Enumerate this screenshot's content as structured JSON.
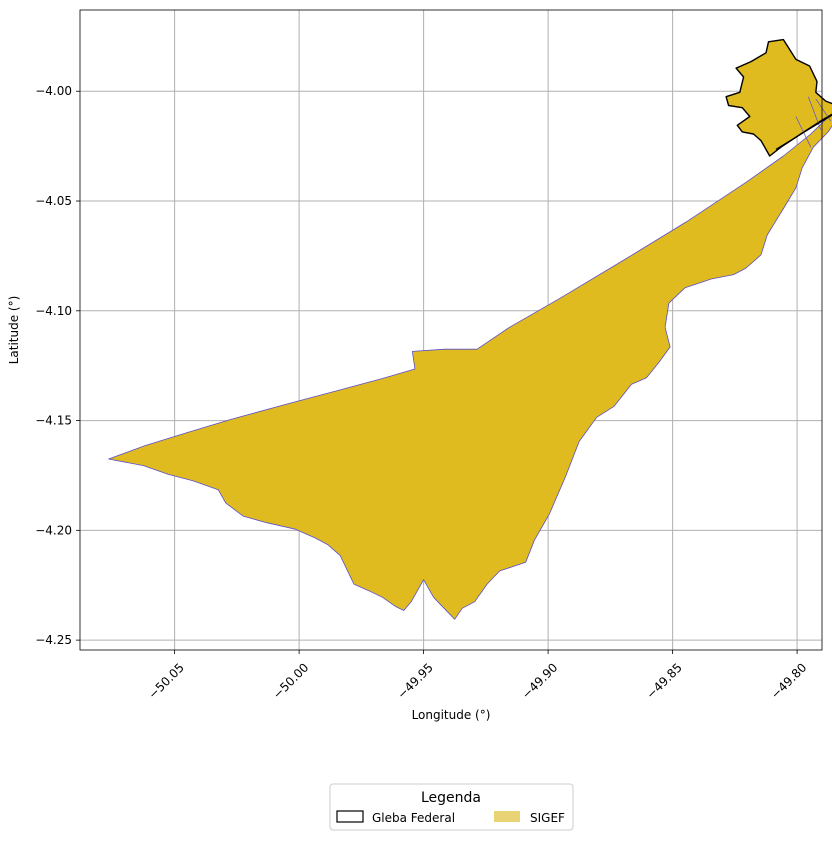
{
  "chart_data": {
    "type": "map",
    "xlabel": "Longitude (°)",
    "ylabel": "Latitude (°)",
    "xlim": [
      -50.088,
      -49.79
    ],
    "ylim": [
      -4.2545,
      -3.963
    ],
    "grid": true,
    "x_ticks": [
      {
        "value": -50.05,
        "label": "−50.05"
      },
      {
        "value": -50.0,
        "label": "−50.00"
      },
      {
        "value": -49.95,
        "label": "−49.95"
      },
      {
        "value": -49.9,
        "label": "−49.90"
      },
      {
        "value": -49.85,
        "label": "−49.85"
      },
      {
        "value": -49.8,
        "label": "−49.80"
      }
    ],
    "y_ticks": [
      {
        "value": -4.0,
        "label": "−4.00"
      },
      {
        "value": -4.05,
        "label": "−4.05"
      },
      {
        "value": -4.1,
        "label": "−4.10"
      },
      {
        "value": -4.15,
        "label": "−4.15"
      },
      {
        "value": -4.2,
        "label": "−4.20"
      },
      {
        "value": -4.25,
        "label": "−4.25"
      }
    ],
    "legend": {
      "title": "Legenda",
      "placement": "bottom-center",
      "entries": [
        {
          "label": "Gleba Federal",
          "style": "outline",
          "color": "#000000"
        },
        {
          "label": "SIGEF",
          "style": "fill",
          "color": "#e8d474"
        }
      ]
    },
    "colors": {
      "sigef_fill": "#dfbb20",
      "sigef_edge": "#5b4fc9",
      "gleba_edge": "#000000",
      "grid": "#b0b0b0"
    },
    "layers": [
      {
        "name": "SIGEF",
        "coordinates": [
          [
            -49.7805,
            -4.0045
          ],
          [
            -49.7835,
            -4.0115
          ],
          [
            -49.7875,
            -4.0185
          ],
          [
            -49.7935,
            -4.0255
          ],
          [
            -49.798,
            -4.035
          ],
          [
            -49.8005,
            -4.044
          ],
          [
            -49.805,
            -4.0525
          ],
          [
            -49.8085,
            -4.059
          ],
          [
            -49.812,
            -4.0655
          ],
          [
            -49.8145,
            -4.0745
          ],
          [
            -49.8205,
            -4.0805
          ],
          [
            -49.8255,
            -4.0835
          ],
          [
            -49.8345,
            -4.0855
          ],
          [
            -49.845,
            -4.0895
          ],
          [
            -49.8515,
            -4.0965
          ],
          [
            -49.853,
            -4.1075
          ],
          [
            -49.851,
            -4.1165
          ],
          [
            -49.8555,
            -4.1235
          ],
          [
            -49.8605,
            -4.1305
          ],
          [
            -49.8665,
            -4.1335
          ],
          [
            -49.8735,
            -4.1435
          ],
          [
            -49.8805,
            -4.1485
          ],
          [
            -49.8875,
            -4.1595
          ],
          [
            -49.893,
            -4.1755
          ],
          [
            -49.8995,
            -4.1925
          ],
          [
            -49.9055,
            -4.2045
          ],
          [
            -49.909,
            -4.2145
          ],
          [
            -49.9195,
            -4.2185
          ],
          [
            -49.9245,
            -4.2245
          ],
          [
            -49.9295,
            -4.2325
          ],
          [
            -49.9345,
            -4.2355
          ],
          [
            -49.9375,
            -4.2405
          ],
          [
            -49.946,
            -4.2305
          ],
          [
            -49.95,
            -4.2225
          ],
          [
            -49.955,
            -4.2325
          ],
          [
            -49.958,
            -4.2365
          ],
          [
            -49.9615,
            -4.2345
          ],
          [
            -49.9665,
            -4.2305
          ],
          [
            -49.972,
            -4.2275
          ],
          [
            -49.978,
            -4.2245
          ],
          [
            -49.9835,
            -4.2115
          ],
          [
            -49.9885,
            -4.2065
          ],
          [
            -49.9935,
            -4.2035
          ],
          [
            -50.0015,
            -4.1995
          ],
          [
            -50.013,
            -4.1965
          ],
          [
            -50.0225,
            -4.1935
          ],
          [
            -50.0295,
            -4.1875
          ],
          [
            -50.0325,
            -4.1815
          ],
          [
            -50.0425,
            -4.1775
          ],
          [
            -50.0525,
            -4.1745
          ],
          [
            -50.0625,
            -4.1705
          ],
          [
            -50.0765,
            -4.1675
          ],
          [
            -50.062,
            -4.1615
          ],
          [
            -50.045,
            -4.1555
          ],
          [
            -50.0275,
            -4.1495
          ],
          [
            -50.005,
            -4.1425
          ],
          [
            -49.985,
            -4.1365
          ],
          [
            -49.9655,
            -4.1305
          ],
          [
            -49.9535,
            -4.1265
          ],
          [
            -49.9545,
            -4.1185
          ],
          [
            -49.9415,
            -4.1175
          ],
          [
            -49.9285,
            -4.1175
          ],
          [
            -49.9155,
            -4.1075
          ],
          [
            -49.8955,
            -4.0945
          ],
          [
            -49.8705,
            -4.0775
          ],
          [
            -49.8445,
            -4.0595
          ],
          [
            -49.8205,
            -4.0415
          ],
          [
            -49.8055,
            -4.0295
          ],
          [
            -49.7945,
            -4.0195
          ],
          [
            -49.7845,
            -4.0085
          ]
        ]
      },
      {
        "name": "Gleba Federal",
        "coordinates": [
          [
            -49.7815,
            -4.0075
          ],
          [
            -49.7905,
            -4.0135
          ],
          [
            -49.7985,
            -4.0195
          ],
          [
            -49.8065,
            -4.0255
          ],
          [
            -49.811,
            -4.0295
          ],
          [
            -49.8145,
            -4.0225
          ],
          [
            -49.8175,
            -4.0195
          ],
          [
            -49.822,
            -4.0185
          ],
          [
            -49.824,
            -4.0155
          ],
          [
            -49.819,
            -4.0115
          ],
          [
            -49.822,
            -4.0075
          ],
          [
            -49.8275,
            -4.0065
          ],
          [
            -49.8285,
            -4.0025
          ],
          [
            -49.823,
            -4.0005
          ],
          [
            -49.8215,
            -3.9935
          ],
          [
            -49.8245,
            -3.9895
          ],
          [
            -49.8185,
            -3.9865
          ],
          [
            -49.8125,
            -3.9825
          ],
          [
            -49.8115,
            -3.9775
          ],
          [
            -49.8055,
            -3.9765
          ],
          [
            -49.8005,
            -3.9855
          ],
          [
            -49.795,
            -3.9885
          ],
          [
            -49.792,
            -3.9955
          ],
          [
            -49.7925,
            -4.0005
          ],
          [
            -49.7885,
            -4.0045
          ]
        ]
      }
    ],
    "internal_lines": [
      [
        [
          -49.7955,
          -4.0025
        ],
        [
          -49.7905,
          -4.0175
        ]
      ],
      [
        [
          -49.8005,
          -4.0115
        ],
        [
          -49.7945,
          -4.0255
        ]
      ],
      [
        [
          -49.7925,
          -4.0035
        ],
        [
          -49.7865,
          -4.0135
        ]
      ],
      [
        [
          -49.7825,
          -4.0085
        ],
        [
          -49.8085,
          -4.0265
        ]
      ]
    ]
  }
}
